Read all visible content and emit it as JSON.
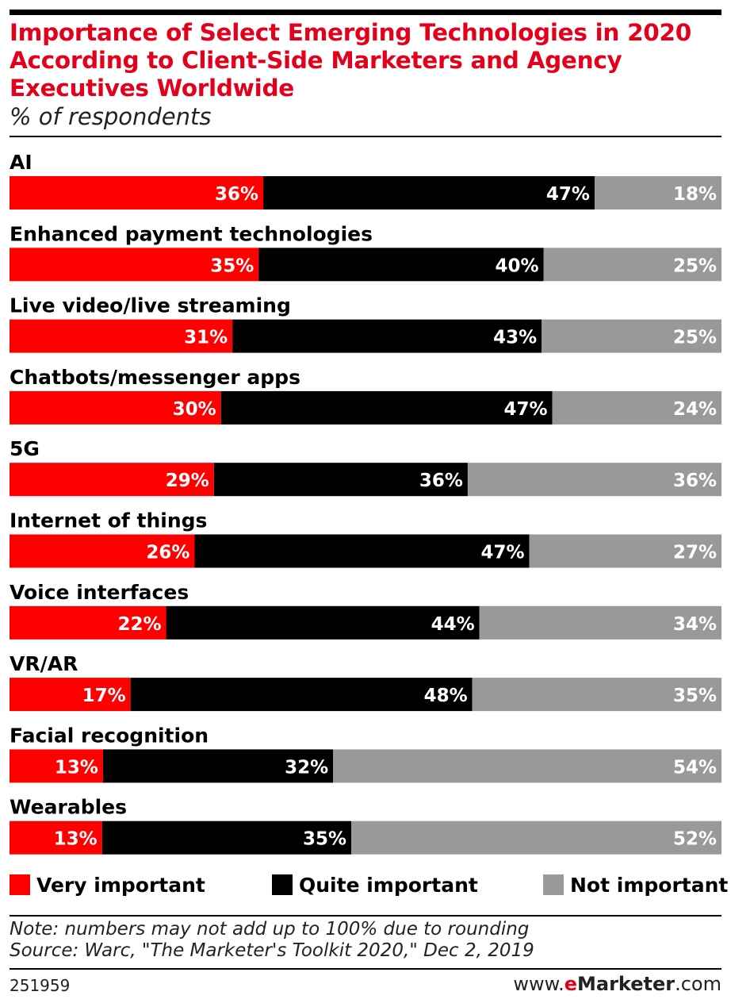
{
  "header": {
    "title": "Importance of Select Emerging Technologies in 2020 According to Client-Side Marketers and Agency Executives Worldwide",
    "subtitle": "% of respondents"
  },
  "colors": {
    "very": "#ff0000",
    "quite": "#000000",
    "not": "#999999",
    "title": "#e4001b"
  },
  "legend": {
    "very": "Very important",
    "quite": "Quite important",
    "not": "Not important"
  },
  "chart_data": {
    "type": "bar",
    "orientation": "horizontal",
    "stacked": true,
    "title": "Importance of Select Emerging Technologies in 2020 According to Client-Side Marketers and Agency Executives Worldwide",
    "subtitle": "% of respondents",
    "categories": [
      "AI",
      "Enhanced payment technologies",
      "Live video/live streaming",
      "Chatbots/messenger apps",
      "5G",
      "Internet of things",
      "Voice interfaces",
      "VR/AR",
      "Facial recognition",
      "Wearables"
    ],
    "series": [
      {
        "name": "Very important",
        "values": [
          36,
          35,
          31,
          30,
          29,
          26,
          22,
          17,
          13,
          13
        ]
      },
      {
        "name": "Quite important",
        "values": [
          47,
          40,
          43,
          47,
          36,
          47,
          44,
          48,
          32,
          35
        ]
      },
      {
        "name": "Not important",
        "values": [
          18,
          25,
          25,
          24,
          36,
          27,
          34,
          35,
          54,
          52
        ]
      }
    ],
    "value_suffix": "%",
    "legend_position": "bottom",
    "grid": false
  },
  "notes": {
    "note": "Note: numbers may not add up to 100% due to rounding",
    "source": "Source: Warc, \"The Marketer's Toolkit 2020,\" Dec 2, 2019"
  },
  "footer": {
    "id": "251959",
    "brand_prefix": "www.",
    "brand_accent": "e",
    "brand_name": "Marketer",
    "brand_suffix": ".com"
  }
}
